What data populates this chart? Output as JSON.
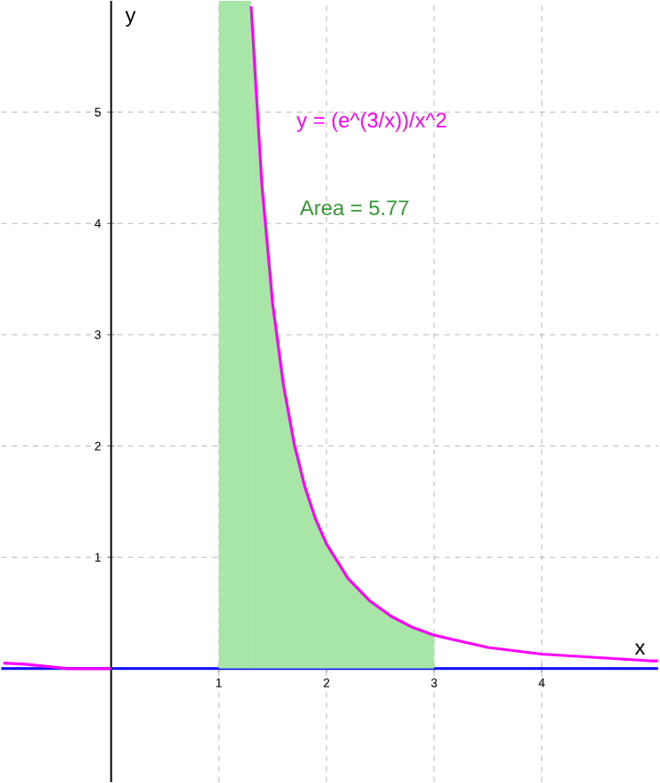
{
  "chart_data": {
    "type": "line",
    "xlabel": "x",
    "ylabel": "y",
    "xlim": [
      -1.02,
      5.08
    ],
    "ylim": [
      -1.02,
      6.0
    ],
    "xticks": [
      1,
      2,
      3,
      4
    ],
    "yticks": [
      1,
      2,
      3,
      4,
      5
    ],
    "grid": true,
    "annotations": [
      "y = (e^(3/x))/x^2",
      "Area = 5.77"
    ],
    "bands": [
      {
        "axis": "x",
        "from": 1,
        "to": 1.3,
        "color": "#a8e6a8"
      }
    ],
    "series": [
      {
        "type": "area",
        "color": "#a8e6a8",
        "x": [
          1.3,
          1.4,
          1.5,
          1.6,
          1.7,
          1.8,
          1.9,
          2,
          2.2,
          2.4,
          2.6,
          2.8,
          3
        ],
        "values": [
          5.95,
          4.35,
          3.28,
          2.55,
          2.02,
          1.63,
          1.34,
          1.12,
          0.81,
          0.61,
          0.47,
          0.37,
          0.3
        ]
      },
      {
        "color": "#ff00ff",
        "x": [
          -1,
          -0.8,
          -0.6,
          -0.4,
          -0.2,
          0,
          0.5,
          1.3,
          1.4,
          1.5,
          1.6,
          1.7,
          1.8,
          1.9,
          2,
          2.2,
          2.4,
          2.6,
          2.8,
          3,
          3.5,
          4,
          4.5,
          5,
          5.08
        ],
        "values": [
          0.05,
          0.04,
          0.02,
          0,
          0,
          0,
          null,
          5.95,
          4.35,
          3.28,
          2.55,
          2.02,
          1.63,
          1.34,
          1.12,
          0.81,
          0.61,
          0.47,
          0.37,
          0.3,
          0.19,
          0.13,
          0.1,
          0.07,
          0.07
        ]
      }
    ]
  }
}
